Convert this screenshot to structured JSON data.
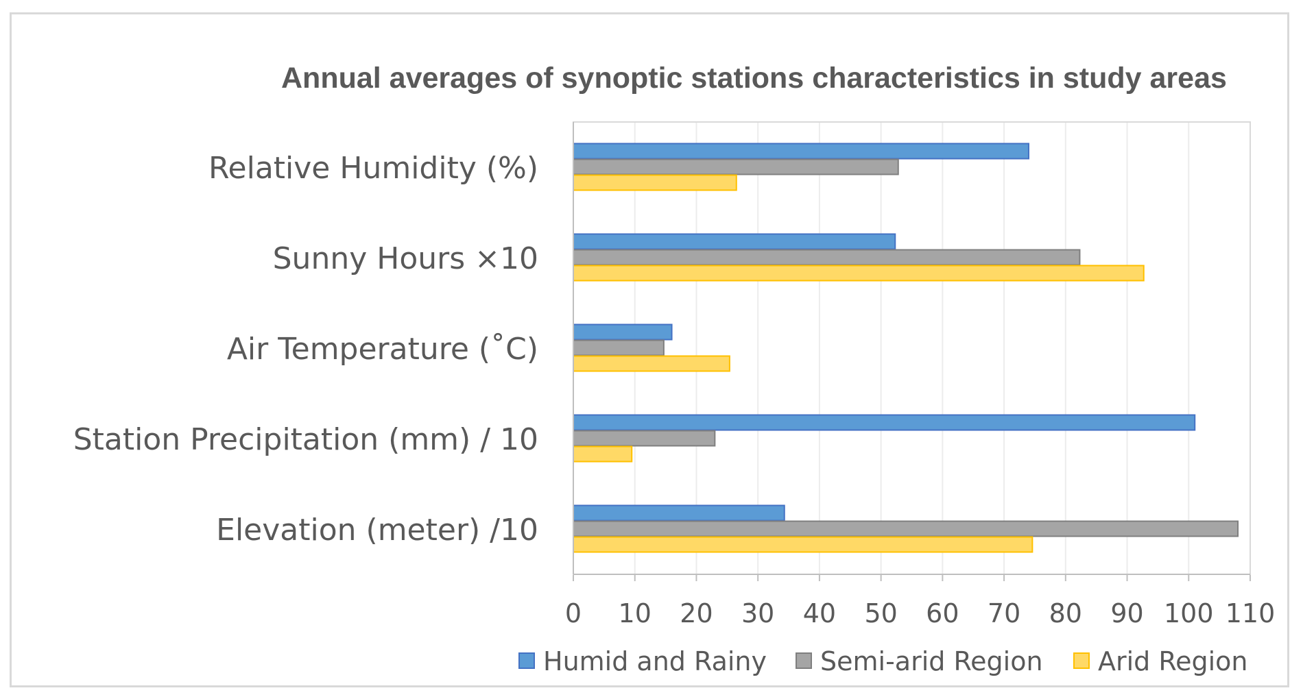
{
  "chart_data": {
    "type": "bar",
    "orientation": "horizontal",
    "title": "Annual averages of synoptic stations characteristics in study areas",
    "categories": [
      "Relative Humidity (%)",
      "Sunny Hours ×10",
      "Air Temperature (˚C)",
      "Station Precipitation (mm) / 10",
      "Elevation (meter) /10"
    ],
    "series": [
      {
        "name": "Humid and Rainy",
        "color": "#5b9bd5",
        "stroke": "#4472c4",
        "values": [
          74,
          52.3,
          16,
          101,
          34.3
        ]
      },
      {
        "name": "Semi-arid Region",
        "color": "#a5a5a5",
        "stroke": "#7f7f7f",
        "values": [
          52.8,
          82.3,
          14.7,
          23,
          108
        ]
      },
      {
        "name": "Arid Region",
        "color": "#ffd966",
        "stroke": "#ffc000",
        "values": [
          26.5,
          92.7,
          25.4,
          9.5,
          74.6
        ]
      }
    ],
    "xlim": [
      0,
      110
    ],
    "xticks": [
      "0",
      "10",
      "20",
      "30",
      "40",
      "50",
      "60",
      "70",
      "80",
      "90",
      "100",
      "110"
    ],
    "grid": true,
    "legend": "bottom"
  }
}
